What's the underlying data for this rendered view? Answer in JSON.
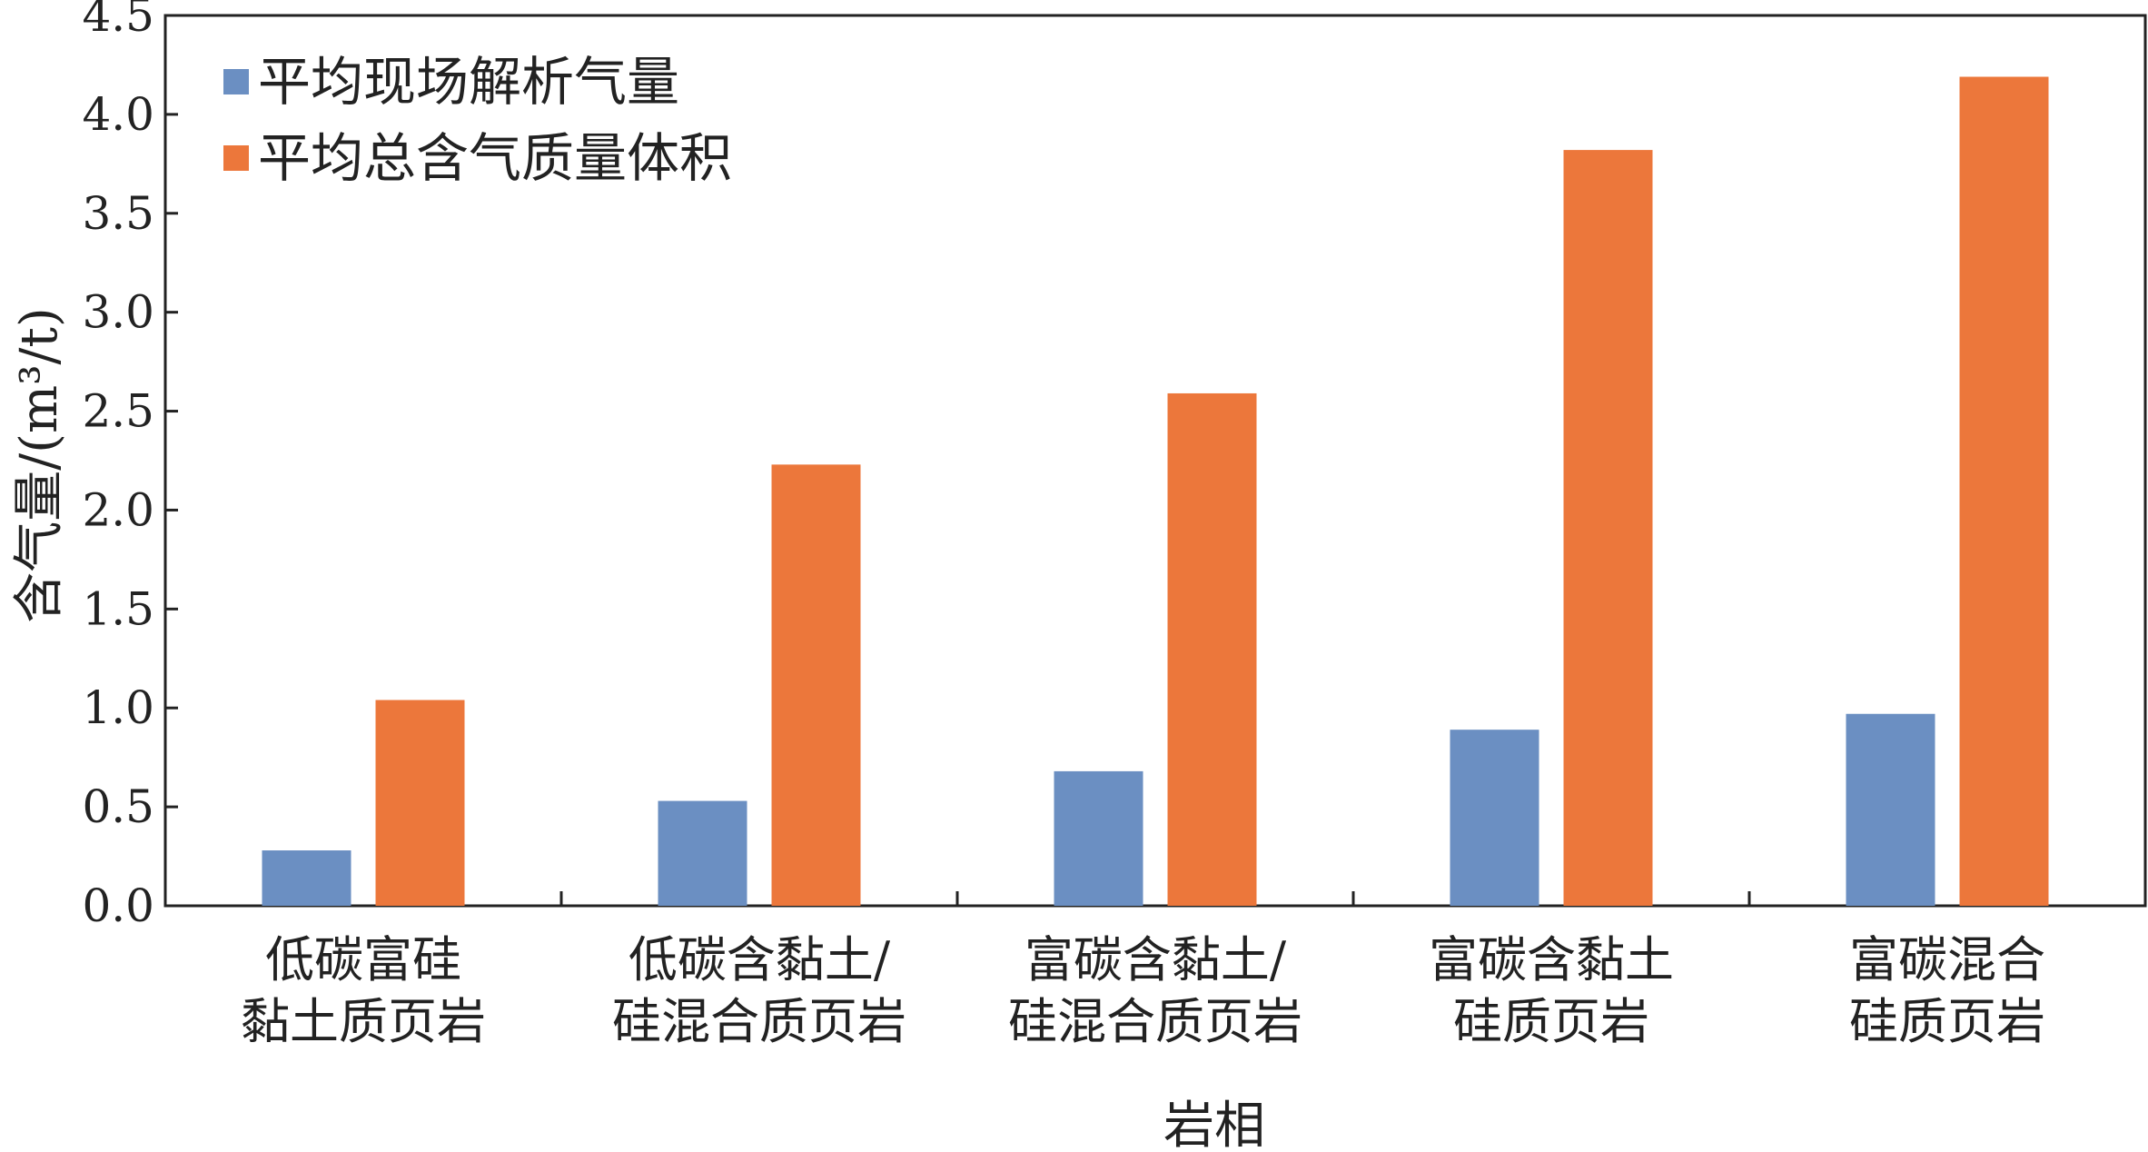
{
  "chart_data": {
    "type": "bar",
    "title": "",
    "xlabel": "岩相",
    "ylabel": "含气量/(m³/t)",
    "ylim": [
      0,
      4.5
    ],
    "yticks": [
      "0.0",
      "0.5",
      "1.0",
      "1.5",
      "2.0",
      "2.5",
      "3.0",
      "3.5",
      "4.0",
      "4.5"
    ],
    "categories": [
      [
        "低碳富硅",
        "黏土质页岩"
      ],
      [
        "低碳含黏土/",
        "硅混合质页岩"
      ],
      [
        "富碳含黏土/",
        "硅混合质页岩"
      ],
      [
        "富碳含黏土",
        "硅质页岩"
      ],
      [
        "富碳混合",
        "硅质页岩"
      ]
    ],
    "series": [
      {
        "name": "平均现场解析气量",
        "color": "#6b8fc2",
        "values": [
          0.28,
          0.53,
          0.68,
          0.89,
          0.97
        ]
      },
      {
        "name": "平均总含气质量体积",
        "color": "#ec773b",
        "values": [
          1.04,
          2.23,
          2.59,
          3.82,
          4.19
        ]
      }
    ],
    "legend_position": "top-left",
    "grid": false
  }
}
